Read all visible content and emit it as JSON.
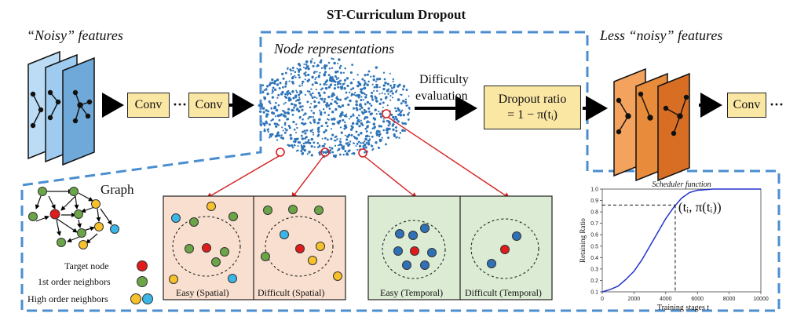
{
  "title": "ST-Curriculum Dropout",
  "labels": {
    "noisy_features": "“Noisy” features",
    "node_representations": "Node representations",
    "less_noisy_features": "Less “noisy” features",
    "difficulty_line1": "Difficulty",
    "difficulty_line2": "evaluation",
    "dropout_line1": "Dropout ratio",
    "dropout_line2": "= 1 − π(tᵢ)",
    "conv": "Conv",
    "ellipsis": "···",
    "graph": "Graph"
  },
  "legend": {
    "target": "Target node",
    "first_order": "1st order neighbors",
    "high_order": "High order neighbors"
  },
  "panels": [
    {
      "label": "Easy (Spatial)"
    },
    {
      "label": "Difficult (Spatial)"
    },
    {
      "label": "Easy (Temporal)"
    },
    {
      "label": "Difficult (Temporal)"
    }
  ],
  "colors": {
    "dashed_border": "#4a8ed0",
    "conv_fill": "#fbe7a4",
    "blue_layer": "#8bbde8",
    "orange_layer": "#e07a2e",
    "spatial_panel": "#f9dfcf",
    "temporal_panel": "#dcebd3",
    "target_red": "#e01b1b",
    "green": "#6ba547",
    "yellow": "#f6c12a",
    "cyan": "#3bb6e8",
    "temporal_blue": "#2f70b6",
    "pointer_red": "#d42020",
    "curve_blue": "#2233cc"
  },
  "chart_data": {
    "type": "line",
    "title": "Scheduler function",
    "xlabel": "Training stages t",
    "ylabel": "Retaining Ratio",
    "xlim": [
      0,
      10000
    ],
    "ylim": [
      0.1,
      1.0
    ],
    "xticks": [
      0,
      2000,
      4000,
      6000,
      8000,
      10000
    ],
    "yticks": [
      0.1,
      0.2,
      0.3,
      0.4,
      0.5,
      0.6,
      0.7,
      0.8,
      0.9,
      1.0
    ],
    "series": [
      {
        "x": [
          0,
          500,
          1000,
          1500,
          2000,
          2500,
          3000,
          3500,
          4000,
          4500,
          5000,
          5500,
          6000,
          7000,
          8000,
          9000,
          10000
        ],
        "y": [
          0.1,
          0.12,
          0.15,
          0.21,
          0.28,
          0.38,
          0.5,
          0.62,
          0.74,
          0.84,
          0.92,
          0.97,
          0.99,
          1.0,
          1.0,
          1.0,
          1.0
        ]
      }
    ],
    "annotation": {
      "text": "(tᵢ, π(tᵢ))",
      "x": 4600,
      "y": 0.86
    }
  }
}
